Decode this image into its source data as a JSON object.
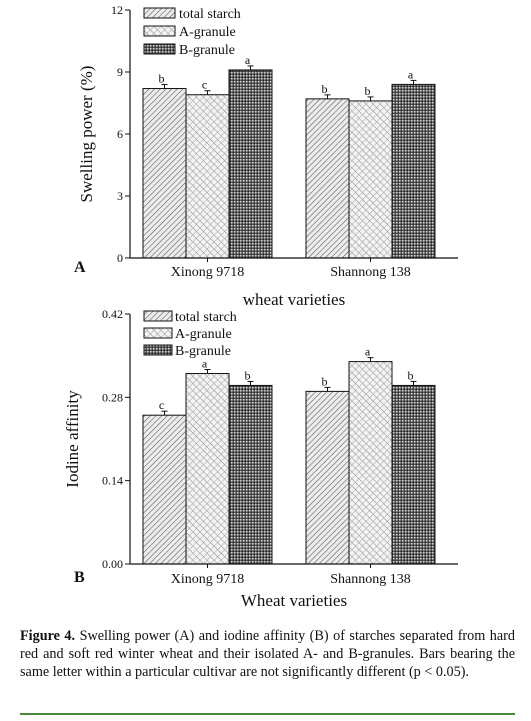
{
  "chart_data": [
    {
      "type": "bar",
      "panel_label": "A",
      "categories": [
        "Xinong 9718",
        "Shannong 138"
      ],
      "series": [
        {
          "name": "total starch",
          "values": [
            8.2,
            7.7
          ],
          "letters": [
            "b",
            "b"
          ],
          "pattern": "hatch-light"
        },
        {
          "name": "A-granule",
          "values": [
            7.9,
            7.6
          ],
          "letters": [
            "c",
            "b"
          ],
          "pattern": "hatch-cross"
        },
        {
          "name": "B-granule",
          "values": [
            9.1,
            8.4
          ],
          "letters": [
            "a",
            "a"
          ],
          "pattern": "dots-dark"
        }
      ],
      "ylabel": "Swelling power (%)",
      "xlabel": "wheat varieties",
      "ylim": [
        0,
        12
      ],
      "yticks": [
        "0",
        "3",
        "6",
        "9",
        "12"
      ],
      "legend_position": "top-left",
      "grid": false
    },
    {
      "type": "bar",
      "panel_label": "B",
      "categories": [
        "Xinong 9718",
        "Shannong 138"
      ],
      "series": [
        {
          "name": "total starch",
          "values": [
            0.25,
            0.29
          ],
          "letters": [
            "c",
            "b"
          ],
          "pattern": "hatch-light"
        },
        {
          "name": "A-granule",
          "values": [
            0.32,
            0.34
          ],
          "letters": [
            "a",
            "a"
          ],
          "pattern": "hatch-cross"
        },
        {
          "name": "B-granule",
          "values": [
            0.3,
            0.3
          ],
          "letters": [
            "b",
            "b"
          ],
          "pattern": "dots-dark"
        }
      ],
      "ylabel": "Iodine affinity",
      "xlabel": "Wheat varieties",
      "ylim": [
        0,
        0.42
      ],
      "yticks": [
        "0.00",
        "0.14",
        "0.28",
        "0.42"
      ],
      "legend_position": "top-left",
      "grid": false
    }
  ],
  "caption": {
    "label": "Figure 4.",
    "text": "Swelling power (A) and iodine affinity (B) of starches separated from hard red and soft red winter wheat and their isolated A- and B-granules. Bars bearing the same letter within a particular cultivar are not significantly different (p < 0.05)."
  }
}
